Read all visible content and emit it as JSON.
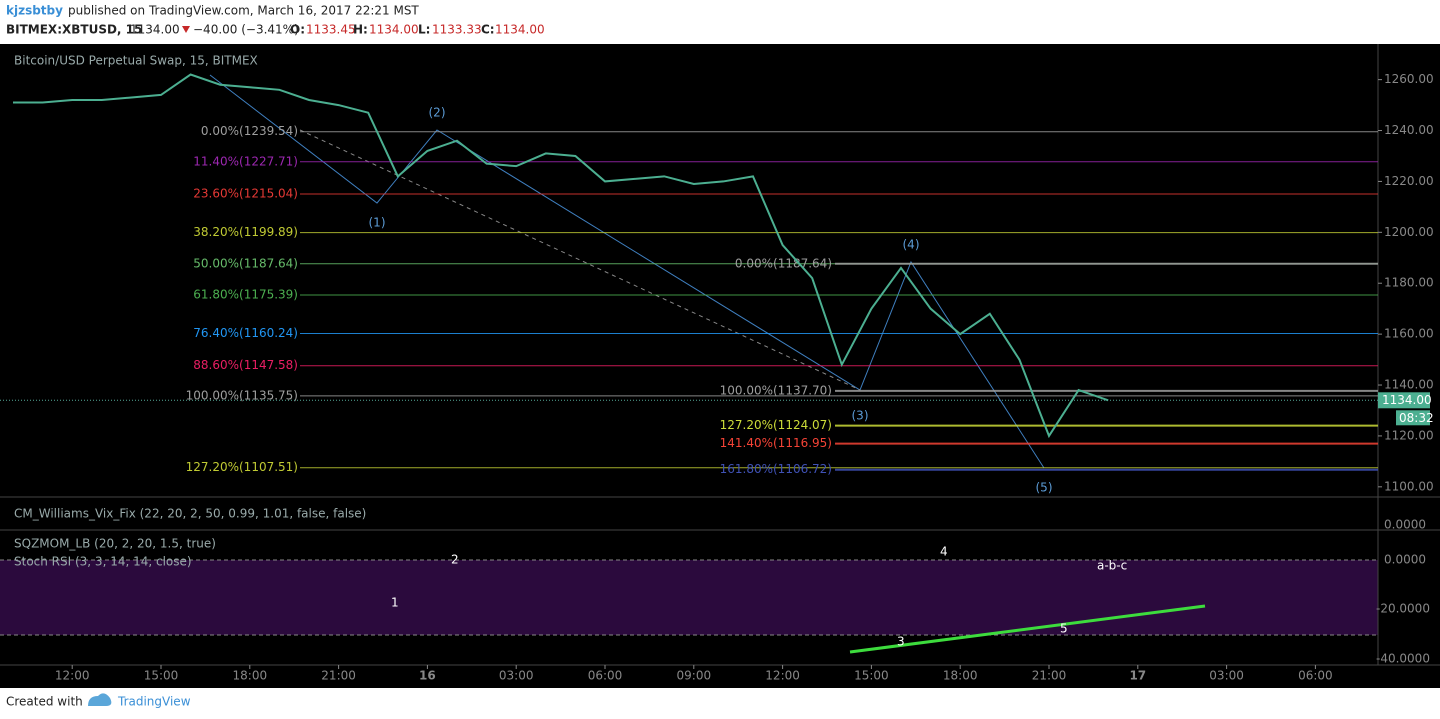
{
  "header": {
    "user": "kjzsbtby",
    "published": "published on TradingView.com, March 16, 2017 22:21 MST",
    "symbol": "BITMEX:XBTUSD, 15",
    "close": "1134.00",
    "change": "−40.00 (−3.41%)",
    "o_label": "O:",
    "o": "1133.45",
    "h_label": "H:",
    "h": "1134.00",
    "l_label": "L:",
    "l": "1133.33",
    "c_label": "C:",
    "c": "1134.00"
  },
  "footer": {
    "created": "Created with",
    "brand": "TradingView"
  },
  "indicators": {
    "vix": "CM_Williams_Vix_Fix (22, 20, 2, 50, 0.99, 1.01, false, false)",
    "vix_axis": "0.0000",
    "sqz": "SQZMOM_LB (20, 2, 20, 1.5, true)",
    "stoch": "Stoch RSI (3, 3, 14, 14, close)",
    "axis_labels": [
      "0.0000",
      "-20.0000",
      "-40.0000"
    ],
    "wave_labels": [
      "1",
      "2",
      "3",
      "4",
      "5",
      "a-b-c"
    ]
  },
  "chart_data": {
    "type": "line",
    "title": "Bitcoin/USD Perpetual Swap, 15, BITMEX",
    "categories": [
      null,
      null,
      "12:00",
      null,
      null,
      "15:00",
      null,
      null,
      "18:00",
      null,
      null,
      "21:00",
      null,
      null,
      "16",
      null,
      null,
      "03:00",
      null,
      null,
      "06:00",
      null,
      null,
      "09:00",
      null,
      null,
      "12:00",
      null,
      null,
      "15:00",
      null,
      null,
      "18:00",
      null,
      null,
      "21:00",
      null,
      null,
      "17",
      null,
      null,
      "03:00",
      null,
      null,
      "06:00",
      null
    ],
    "series": [
      {
        "name": "XBTUSD",
        "color": "#4caf91",
        "values": [
          1251,
          1251,
          1252,
          1252,
          1253,
          1254,
          1262,
          1258,
          1257,
          1256,
          1252,
          1250,
          1247,
          1222,
          1232,
          1236,
          1227,
          1226,
          1231,
          1230,
          1220,
          1221,
          1222,
          1219,
          1220,
          1222,
          1195,
          1182,
          1148,
          1170,
          1186,
          1170,
          1160,
          1168,
          1150,
          1120,
          1138,
          1134,
          null,
          null,
          null,
          null,
          null,
          null,
          null,
          null
        ]
      }
    ],
    "ylim": [
      1096,
      1274
    ],
    "yticks": [
      {
        "value": 1100,
        "label": "1100.00"
      },
      {
        "value": 1120,
        "label": "1120.00"
      },
      {
        "value": 1140,
        "label": "1140.00"
      },
      {
        "value": 1160,
        "label": "1160.00"
      },
      {
        "value": 1180,
        "label": "1180.00"
      },
      {
        "value": 1200,
        "label": "1200.00"
      },
      {
        "value": 1220,
        "label": "1220.00"
      },
      {
        "value": 1240,
        "label": "1240.00"
      },
      {
        "value": 1260,
        "label": "1260.00"
      }
    ],
    "last_price": {
      "value": 1134,
      "label": "1134.00"
    },
    "countdown": "08:32",
    "fib_left": [
      {
        "value": 1239.54,
        "label": "0.00%(1239.54)",
        "color": "#9e9e9e"
      },
      {
        "value": 1227.71,
        "label": "11.40%(1227.71)",
        "color": "#9c27b0"
      },
      {
        "value": 1215.04,
        "label": "23.60%(1215.04)",
        "color": "#e53935"
      },
      {
        "value": 1199.89,
        "label": "38.20%(1199.89)",
        "color": "#c0ca33"
      },
      {
        "value": 1187.64,
        "label": "50.00%(1187.64)",
        "color": "#66bb6a"
      },
      {
        "value": 1175.39,
        "label": "61.80%(1175.39)",
        "color": "#4caf50"
      },
      {
        "value": 1160.24,
        "label": "76.40%(1160.24)",
        "color": "#2196f3"
      },
      {
        "value": 1147.58,
        "label": "88.60%(1147.58)",
        "color": "#e91e63"
      },
      {
        "value": 1135.75,
        "label": "100.00%(1135.75)",
        "color": "#9e9e9e"
      },
      {
        "value": 1107.51,
        "label": "127.20%(1107.51)",
        "color": "#c0ca33"
      }
    ],
    "fib_right": [
      {
        "value": 1187.64,
        "label": "0.00%(1187.64)",
        "color": "#9e9e9e"
      },
      {
        "value": 1137.7,
        "label": "100.00%(1137.70)",
        "color": "#9e9e9e"
      },
      {
        "value": 1124.07,
        "label": "127.20%(1124.07)",
        "color": "#cddc39"
      },
      {
        "value": 1116.95,
        "label": "141.40%(1116.95)",
        "color": "#f44336"
      },
      {
        "value": 1106.72,
        "label": "161.80%(1106.72)",
        "color": "#3f51b5"
      }
    ],
    "waves": [
      "(1)",
      "(2)",
      "(3)",
      "(4)",
      "(5)"
    ]
  }
}
